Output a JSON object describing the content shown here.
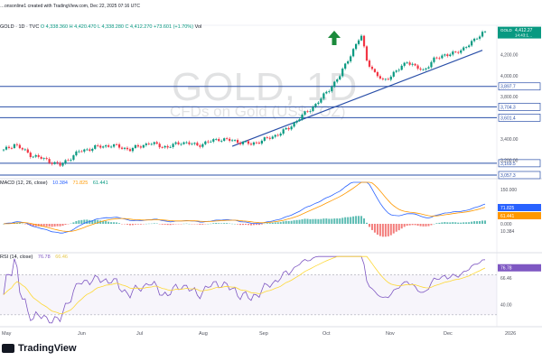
{
  "header": {
    "text": "…onsonline1 created with TradingView.com, Dec 22, 2025 07:16 UTC"
  },
  "symbol": {
    "name": "GOLD · 1D · TVC",
    "ohlc": "O 4,338.360  H 4,420.470  L 4,338.280  C 4,412.270  +73.601 (+1.70%)",
    "vol": "Vol"
  },
  "watermark": {
    "big": "GOLD, 1D",
    "small": "CFDs on Gold (US$ / OZ)"
  },
  "macd_legend": {
    "label": "MACD (12, 26, close)",
    "v1": "10.384",
    "v2": "71.825",
    "v3": "61.441"
  },
  "rsi_legend": {
    "label": "RSI (14, close)",
    "v1": "76.78",
    "v2": "66.46"
  },
  "footer": {
    "brand": "TradingView"
  },
  "colors": {
    "up": "#089981",
    "down": "#f23645",
    "trend": "#2a4fa8",
    "macd": "#2962ff",
    "signal": "#ff9800",
    "rsi": "#7e57c2",
    "rsi_ma": "#fdd835",
    "arrow": "#1b8a3b"
  },
  "chart_data": {
    "type": "candlestick",
    "symbol": "GOLD",
    "timeframe": "1D",
    "x_ticks": [
      "May",
      "Jun",
      "Jul",
      "Aug",
      "Sep",
      "Oct",
      "Nov",
      "Dec",
      "2026"
    ],
    "price_axis": {
      "ticks": [
        "4,200.00",
        "4,000.00",
        "3,800.00",
        "3,400.00",
        "3,200.00"
      ],
      "range": [
        3040,
        4460
      ]
    },
    "last_price": "4,412.27",
    "last_price_sub": "14:43:1…",
    "horizontal_levels": [
      3897.7,
      3704.3,
      3601.4,
      3169.5,
      3057.3
    ],
    "level_labels": [
      "3,897.7",
      "3,704.3",
      "3,601.4",
      "3,169.5",
      "3,057.3"
    ],
    "trendline": {
      "from": {
        "date": "Aug",
        "price": 3330
      },
      "to": {
        "date": "Dec",
        "price": 4240
      }
    },
    "anchors": [
      {
        "i": 0,
        "p": 3290
      },
      {
        "i": 4,
        "p": 3350
      },
      {
        "i": 10,
        "p": 3250
      },
      {
        "i": 16,
        "p": 3200
      },
      {
        "i": 21,
        "p": 3150
      },
      {
        "i": 28,
        "p": 3280
      },
      {
        "i": 34,
        "p": 3320
      },
      {
        "i": 40,
        "p": 3340
      },
      {
        "i": 47,
        "p": 3300
      },
      {
        "i": 54,
        "p": 3360
      },
      {
        "i": 61,
        "p": 3320
      },
      {
        "i": 66,
        "p": 3370
      },
      {
        "i": 72,
        "p": 3340
      },
      {
        "i": 80,
        "p": 3400
      },
      {
        "i": 86,
        "p": 3380
      },
      {
        "i": 92,
        "p": 3350
      },
      {
        "i": 100,
        "p": 3420
      },
      {
        "i": 106,
        "p": 3500
      },
      {
        "i": 110,
        "p": 3600
      },
      {
        "i": 114,
        "p": 3680
      },
      {
        "i": 118,
        "p": 3780
      },
      {
        "i": 121,
        "p": 3870
      },
      {
        "i": 125,
        "p": 4000
      },
      {
        "i": 129,
        "p": 4200
      },
      {
        "i": 132,
        "p": 4340
      },
      {
        "i": 133,
        "p": 4370
      },
      {
        "i": 135,
        "p": 4150
      },
      {
        "i": 138,
        "p": 4020
      },
      {
        "i": 141,
        "p": 3950
      },
      {
        "i": 144,
        "p": 4000
      },
      {
        "i": 147,
        "p": 4060
      },
      {
        "i": 150,
        "p": 4140
      },
      {
        "i": 153,
        "p": 4080
      },
      {
        "i": 156,
        "p": 4050
      },
      {
        "i": 160,
        "p": 4150
      },
      {
        "i": 164,
        "p": 4200
      },
      {
        "i": 168,
        "p": 4210
      },
      {
        "i": 172,
        "p": 4280
      },
      {
        "i": 175,
        "p": 4330
      },
      {
        "i": 178,
        "p": 4412
      }
    ],
    "macd": {
      "axis_ticks": [
        "150.000",
        "0.000",
        "50.000"
      ],
      "macd_last": "71.825",
      "signal_last": "61.441",
      "hist_last": "10.384"
    },
    "rsi": {
      "axis_ticks": [
        "76.78",
        "66.46",
        "40.00"
      ],
      "rsi_last": 76.78,
      "ma_last": 66.46,
      "overbought": 70,
      "oversold": 30
    }
  }
}
